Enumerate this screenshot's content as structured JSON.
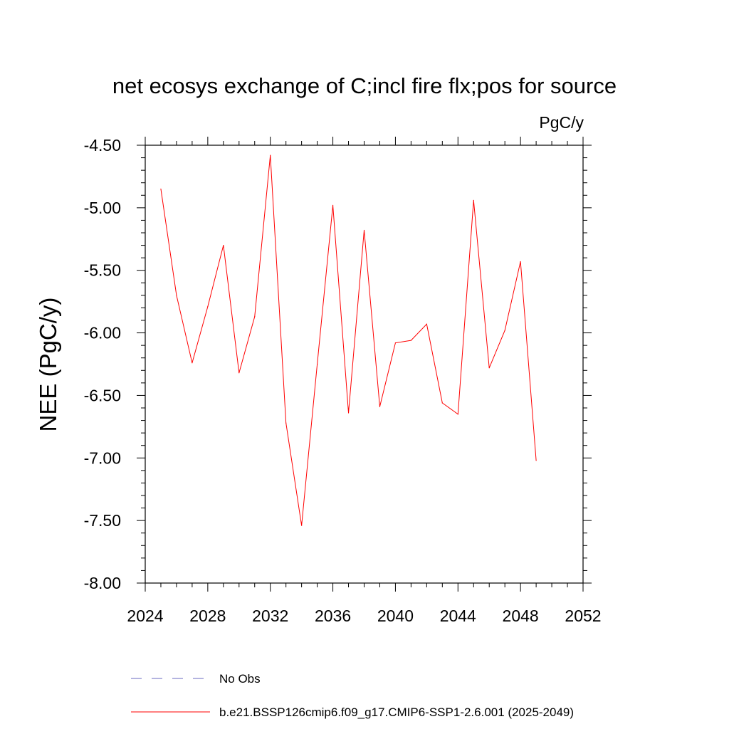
{
  "chart_data": {
    "type": "line",
    "title": "net ecosys exchange of C;incl fire flx;pos for source",
    "units": "PgC/y",
    "xlabel": "",
    "ylabel": "NEE  (PgC/y)",
    "xlim": [
      2024,
      2052
    ],
    "ylim": [
      -8.0,
      -4.5
    ],
    "x_ticks": [
      2024,
      2028,
      2032,
      2036,
      2040,
      2044,
      2048,
      2052
    ],
    "x_tick_labels": [
      "2024",
      "2028",
      "2032",
      "2036",
      "2040",
      "2044",
      "2048",
      "2052"
    ],
    "y_ticks": [
      -4.5,
      -5.0,
      -5.5,
      -6.0,
      -6.5,
      -7.0,
      -7.5,
      -8.0
    ],
    "y_tick_labels": [
      "-4.50",
      "-5.00",
      "-5.50",
      "-6.00",
      "-6.50",
      "-7.00",
      "-7.50",
      "-8.00"
    ],
    "grid": false,
    "legend_position": "bottom",
    "series": [
      {
        "name": "b.e21.BSSP126cmip6.f09_g17.CMIP6-SSP1-2.6.001 (2025-2049)",
        "color": "#ff0000",
        "dash": "solid",
        "x": [
          2025,
          2026,
          2027,
          2028,
          2029,
          2030,
          2031,
          2032,
          2033,
          2034,
          2035,
          2036,
          2037,
          2038,
          2039,
          2040,
          2041,
          2042,
          2043,
          2044,
          2045,
          2046,
          2047,
          2048,
          2049
        ],
        "values": [
          -4.85,
          -5.7,
          -6.24,
          -5.79,
          -5.3,
          -6.32,
          -5.87,
          -4.58,
          -6.72,
          -7.54,
          -6.25,
          -4.98,
          -6.64,
          -5.18,
          -6.59,
          -6.08,
          -6.06,
          -5.93,
          -6.56,
          -6.65,
          -4.94,
          -6.28,
          -5.98,
          -5.43,
          -7.02
        ]
      }
    ],
    "legend": [
      {
        "label": "No Obs",
        "color": "#6a6ac0",
        "dash": "dashed"
      },
      {
        "label": "b.e21.BSSP126cmip6.f09_g17.CMIP6-SSP1-2.6.001 (2025-2049)",
        "color": "#ff0000",
        "dash": "solid"
      }
    ]
  }
}
